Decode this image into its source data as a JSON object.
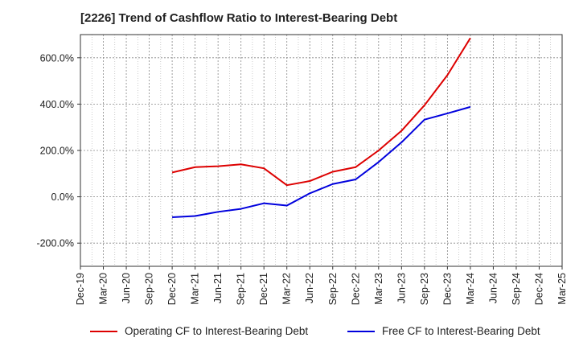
{
  "chart_data": {
    "type": "line",
    "title": "[2226]  Trend of Cashflow Ratio to Interest-Bearing Debt",
    "xlabel": "",
    "ylabel": "",
    "categories": [
      "Dec-19",
      "Mar-20",
      "Jun-20",
      "Sep-20",
      "Dec-20",
      "Mar-21",
      "Jun-21",
      "Sep-21",
      "Dec-21",
      "Mar-22",
      "Jun-22",
      "Sep-22",
      "Dec-22",
      "Mar-23",
      "Jun-23",
      "Sep-23",
      "Dec-23",
      "Mar-24",
      "Jun-24",
      "Sep-24",
      "Dec-24",
      "Mar-25"
    ],
    "ylim": [
      -300,
      700
    ],
    "yticks": [
      -200,
      0,
      200,
      400,
      600
    ],
    "ytick_labels": [
      "-200.0%",
      "0.0%",
      "200.0%",
      "400.0%",
      "600.0%"
    ],
    "grid": true,
    "legend_position": "bottom",
    "series": [
      {
        "name": "Operating CF to Interest-Bearing Debt",
        "color": "#dd0000",
        "values": [
          null,
          null,
          null,
          null,
          105,
          128,
          132,
          140,
          123,
          50,
          68,
          108,
          128,
          200,
          285,
          395,
          525,
          685,
          null,
          null,
          null,
          null
        ]
      },
      {
        "name": "Free CF to Interest-Bearing Debt",
        "color": "#0000dd",
        "values": [
          null,
          null,
          null,
          null,
          -88,
          -83,
          -65,
          -52,
          -28,
          -38,
          15,
          55,
          75,
          150,
          235,
          333,
          360,
          388,
          null,
          null,
          null,
          null
        ]
      }
    ]
  }
}
